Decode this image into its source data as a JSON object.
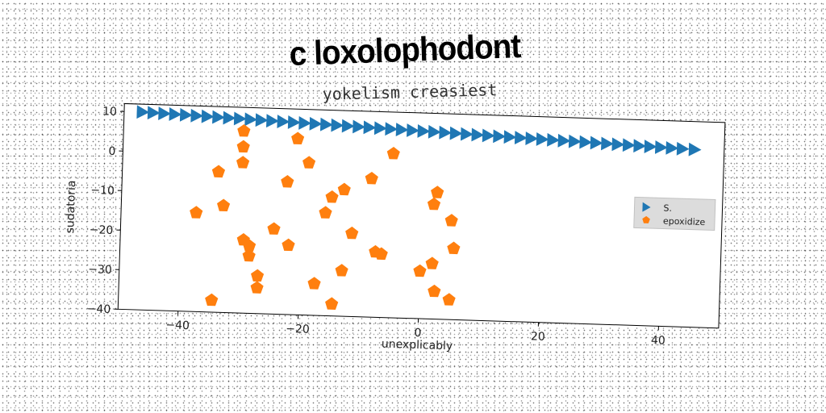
{
  "chart_data": {
    "type": "scatter",
    "title": "c loxolophodont",
    "subtitle": "yokelism creasiest",
    "xlabel": "unexplicably",
    "ylabel": "sudatoria",
    "xlim": [
      -50,
      50
    ],
    "ylim": [
      -40,
      12
    ],
    "xticks": [
      -40,
      -20,
      0,
      20,
      40
    ],
    "yticks": [
      10,
      0,
      -10,
      -20,
      -30,
      -40
    ],
    "x_tick_labels": [
      "−40",
      "−20",
      "0",
      "20",
      "40"
    ],
    "y_tick_labels": [
      "10",
      "0",
      "−10",
      "−20",
      "−30",
      "−40"
    ],
    "grid": false,
    "legend": "center-right",
    "series": [
      {
        "name": "S.",
        "marker": "triangle-right",
        "color": "#1f77b4",
        "x": [
          -47,
          -45.2,
          -43.4,
          -41.6,
          -39.8,
          -38,
          -36.2,
          -34.4,
          -32.6,
          -30.8,
          -29,
          -27.2,
          -25.4,
          -23.6,
          -21.8,
          -20,
          -18.2,
          -16.4,
          -14.6,
          -12.8,
          -11,
          -9.2,
          -7.4,
          -5.6,
          -3.8,
          -2,
          -0.2,
          1.6,
          3.4,
          5.2,
          7,
          8.8,
          10.6,
          12.4,
          14.2,
          16,
          17.8,
          19.6,
          21.4,
          23.2,
          25,
          26.8,
          28.6,
          30.4,
          32.2,
          34,
          35.8,
          37.6,
          39.4,
          41.2,
          43,
          45
        ],
        "y": [
          10,
          9.9,
          9.8,
          9.7,
          9.6,
          9.5,
          9.4,
          9.3,
          9.2,
          9.1,
          9,
          8.9,
          8.8,
          8.7,
          8.6,
          8.5,
          8.4,
          8.3,
          8.2,
          8.1,
          8,
          7.9,
          7.8,
          7.7,
          7.6,
          7.5,
          7.4,
          7.3,
          7.2,
          7.1,
          7,
          6.9,
          6.8,
          6.7,
          6.6,
          6.5,
          6.4,
          6.3,
          6.2,
          6.1,
          6,
          5.9,
          5.8,
          5.7,
          5.6,
          5.5,
          5.4,
          5.3,
          5.2,
          5.1,
          5,
          4.9
        ]
      },
      {
        "name": "epoxidize",
        "marker": "pentagon",
        "color": "#ff7f0e",
        "x": [
          -30,
          -30,
          -30,
          -21,
          -19,
          -5,
          -34,
          -22.5,
          -8.5,
          -13,
          -15,
          -37.5,
          -33,
          -16,
          2.5,
          2,
          5,
          -24.5,
          -11.5,
          -29.5,
          -28.5,
          -22,
          -28.5,
          5.5,
          -7.5,
          -6.5,
          2,
          0,
          -13,
          -27,
          -27,
          -17.5,
          2.5,
          5,
          -34.5,
          -14.5
        ],
        "y": [
          6,
          2,
          -2,
          4.5,
          -1.5,
          1.5,
          -4.5,
          -6.5,
          -5,
          -8,
          -10,
          -15,
          -13,
          -14,
          -8,
          -11,
          -15,
          -18.5,
          -19,
          -21.5,
          -23,
          -22.5,
          -25.5,
          -22,
          -23.5,
          -24,
          -26,
          -28,
          -28.5,
          -30.5,
          -33.5,
          -32,
          -33,
          -35,
          -37,
          -37
        ]
      }
    ]
  }
}
